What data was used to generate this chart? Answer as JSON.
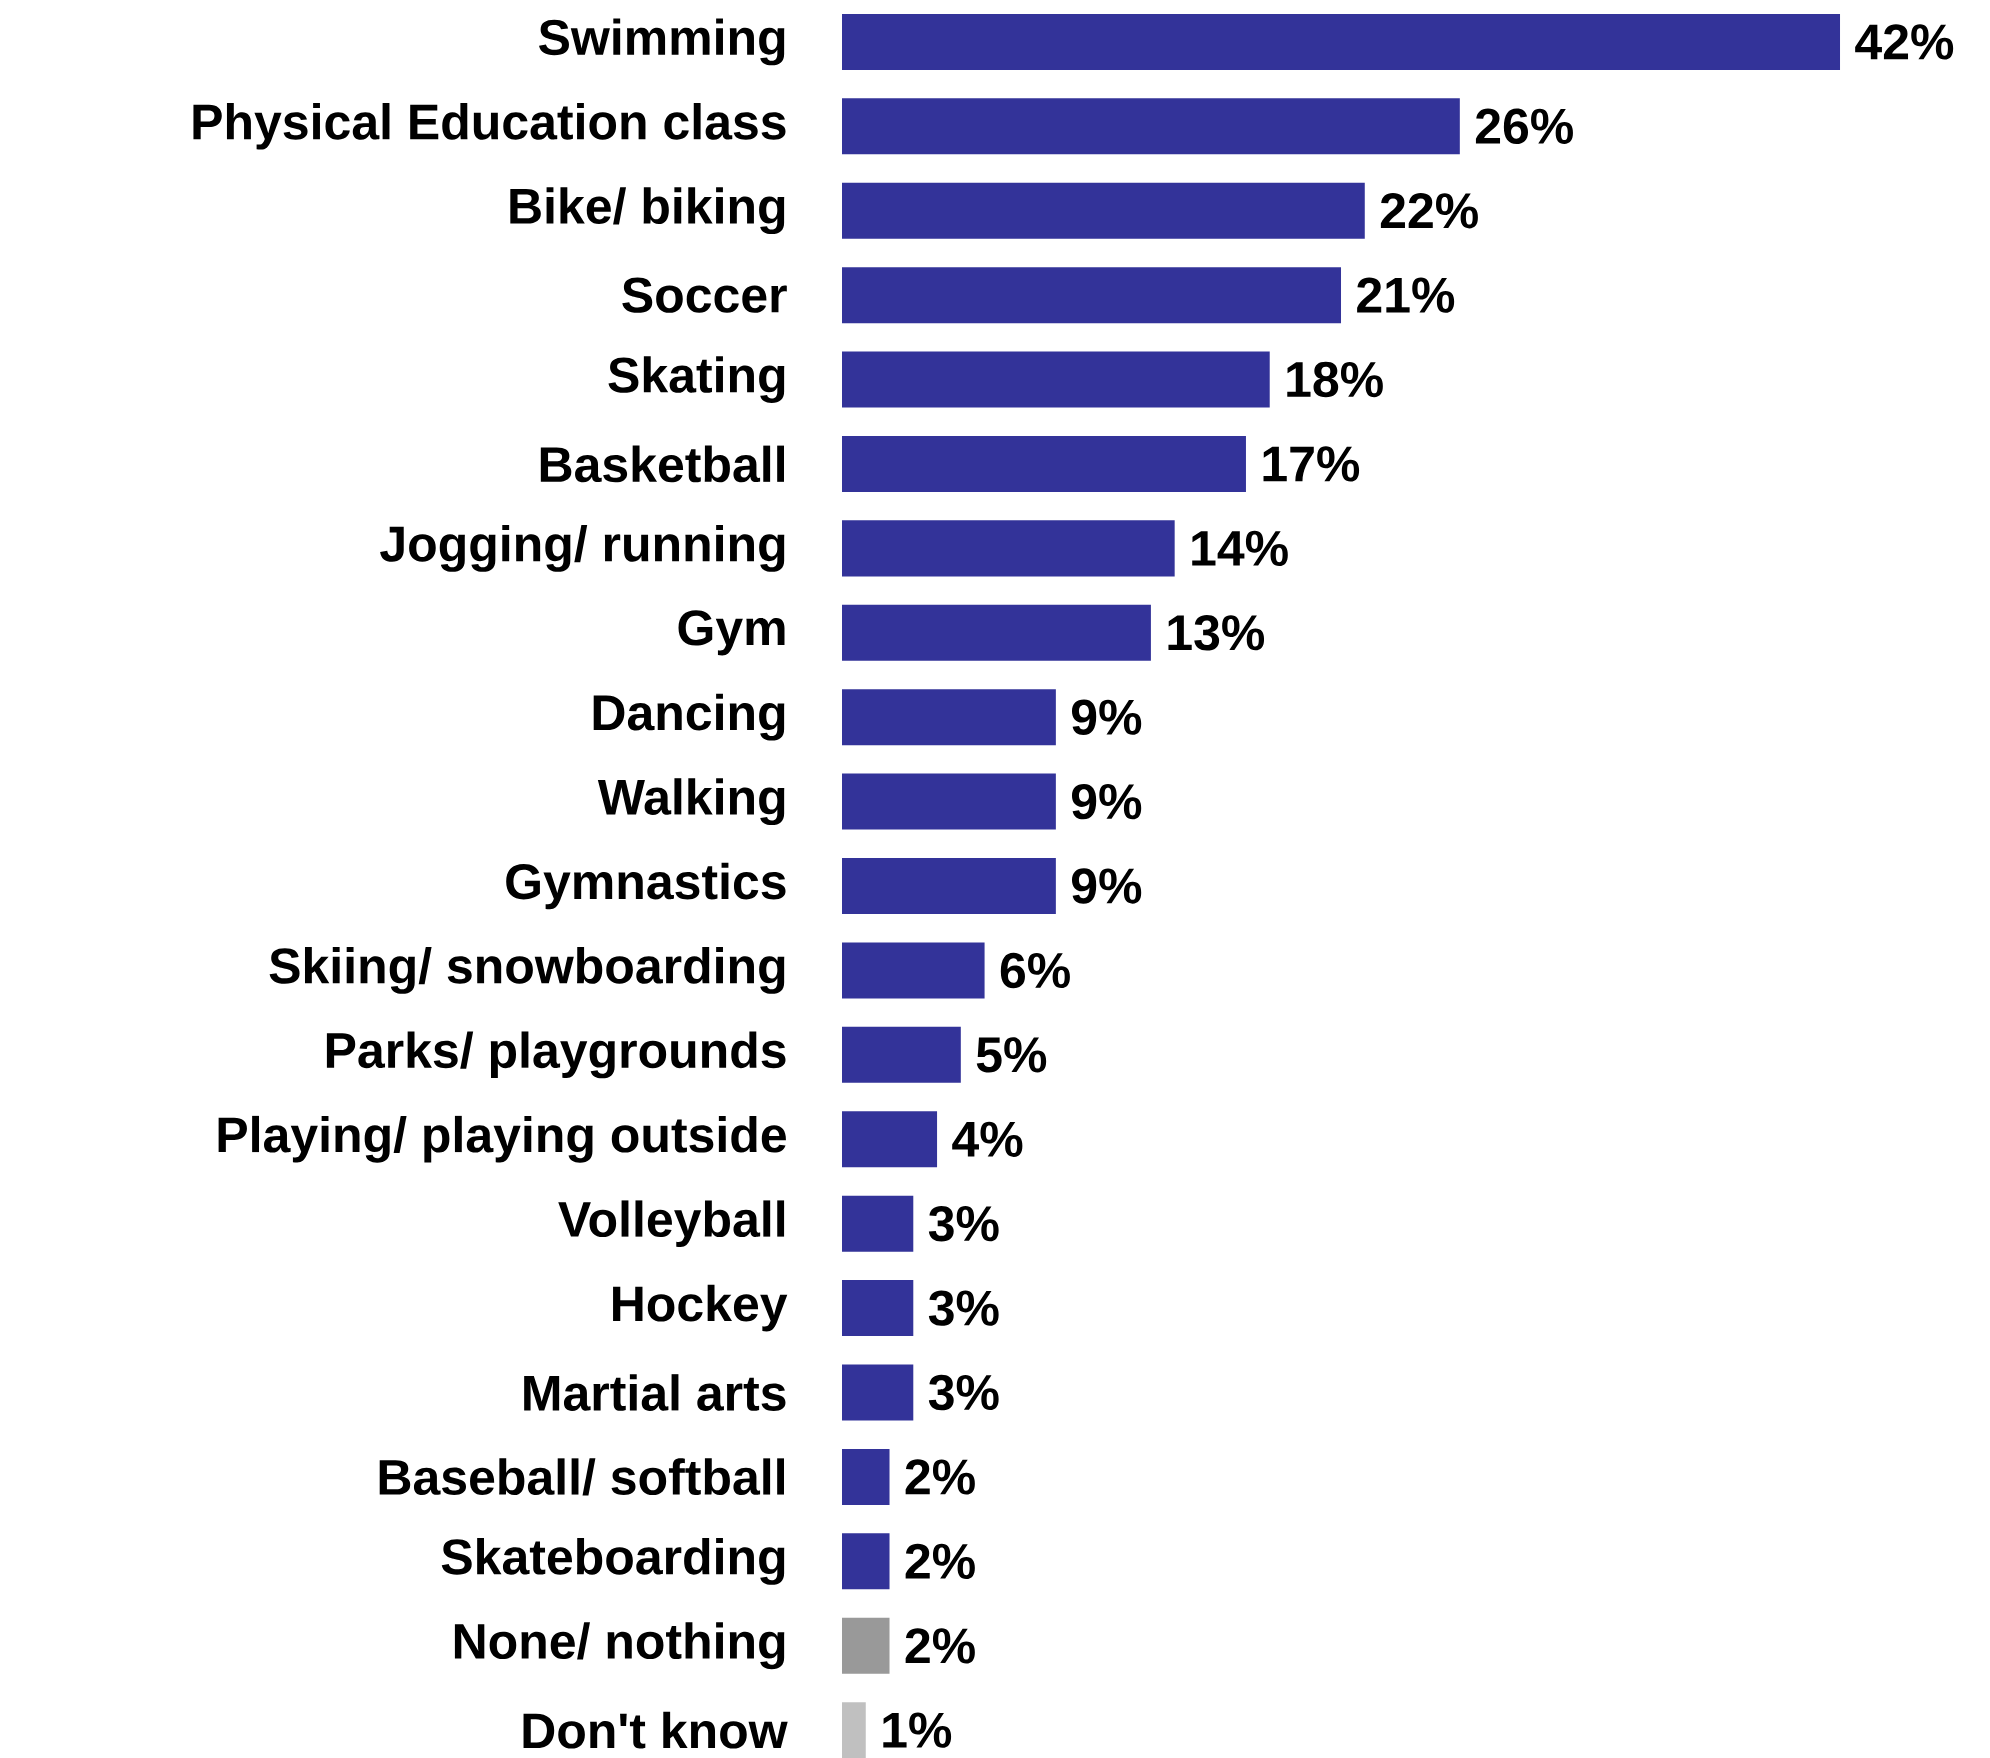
{
  "chart_data": {
    "type": "bar",
    "orientation": "horizontal",
    "categories": [
      "Swimming",
      "Physical Education class",
      "Bike/ biking",
      "Soccer",
      "Skating",
      "Basketball",
      "Jogging/ running",
      "Gym",
      "Dancing",
      "Walking",
      "Gymnastics",
      "Skiing/ snowboarding",
      "Parks/ playgrounds",
      "Playing/ playing outside",
      "Volleyball",
      "Hockey",
      "Martial arts",
      "Baseball/ softball",
      "Skateboarding",
      "None/ nothing",
      "Don't know"
    ],
    "values": [
      42,
      26,
      22,
      21,
      18,
      17,
      14,
      13,
      9,
      9,
      9,
      6,
      5,
      4,
      3,
      3,
      3,
      2,
      2,
      2,
      1
    ],
    "colors": [
      "#333399",
      "#333399",
      "#333399",
      "#333399",
      "#333399",
      "#333399",
      "#333399",
      "#333399",
      "#333399",
      "#333399",
      "#333399",
      "#333399",
      "#333399",
      "#333399",
      "#333399",
      "#333399",
      "#333399",
      "#333399",
      "#333399",
      "#999999",
      "#c0c0c0"
    ],
    "value_labels": [
      "42%",
      "26%",
      "22%",
      "21%",
      "18%",
      "17%",
      "14%",
      "13%",
      "9%",
      "9%",
      "9%",
      "6%",
      "5%",
      "4%",
      "3%",
      "3%",
      "3%",
      "2%",
      "2%",
      "2%",
      "1%"
    ]
  }
}
